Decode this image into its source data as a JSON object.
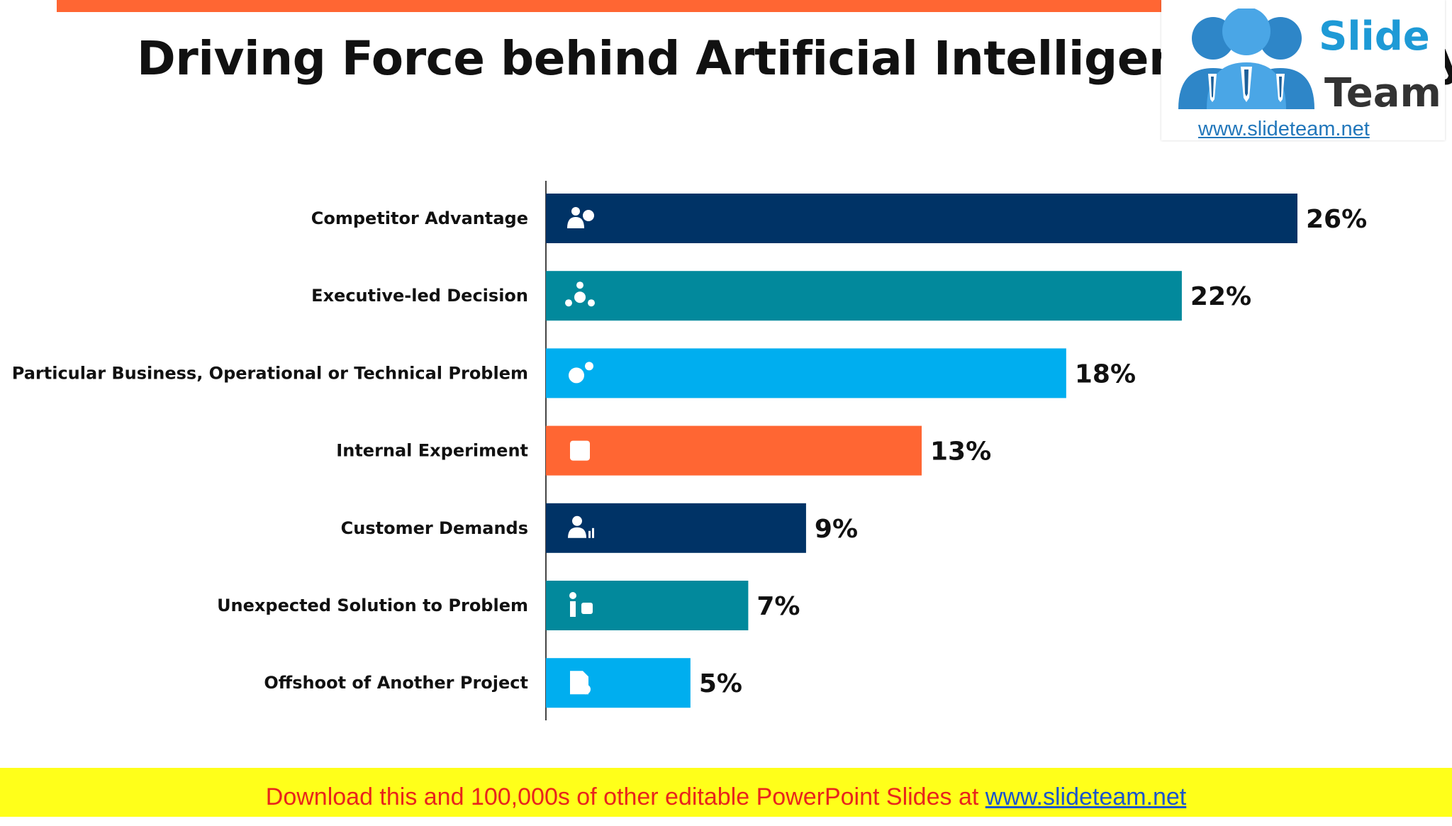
{
  "title": "Driving Force behind Artificial Intelligence Mobility",
  "logo": {
    "name_line1": "Slide",
    "name_line2": "Team",
    "url": "www.slideteam.net"
  },
  "footer": {
    "text": "Download this and 100,000s of other editable PowerPoint Slides at ",
    "link": "www.slideteam.net"
  },
  "colors": {
    "accent": "#ff6633",
    "navy": "#003366",
    "teal": "#02899c",
    "sky": "#00aeef",
    "orange": "#ff6633",
    "footer_bg": "#ffff1a"
  },
  "chart_data": {
    "type": "bar",
    "orientation": "horizontal",
    "categories": [
      "Competitor Advantage",
      "Executive-led Decision",
      "Particular Business, Operational or Technical Problem",
      "Internal Experiment",
      "Customer Demands",
      "Unexpected Solution to Problem",
      "Offshoot of Another Project"
    ],
    "values": [
      26,
      22,
      18,
      13,
      9,
      7,
      5
    ],
    "value_labels": [
      "26%",
      "22%",
      "18%",
      "13%",
      "9%",
      "7%",
      "5%"
    ],
    "bar_colors": [
      "#003366",
      "#02899c",
      "#00aeef",
      "#ff6633",
      "#003366",
      "#02899c",
      "#00aeef"
    ],
    "bar_icons": [
      "user-plus-icon",
      "team-decision-icon",
      "gears-icon",
      "chip-icon",
      "user-chart-icon",
      "person-puzzle-icon",
      "document-gear-icon"
    ],
    "xlim": [
      0,
      26
    ],
    "grid": false,
    "legend": "none"
  }
}
